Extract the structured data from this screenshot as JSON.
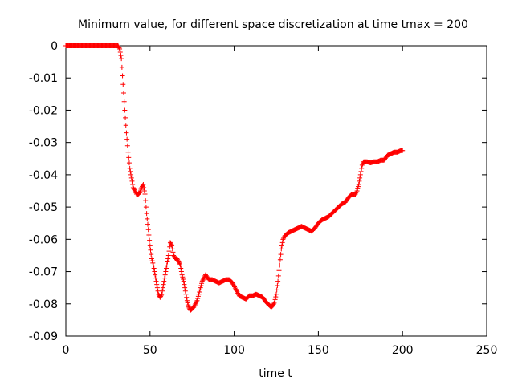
{
  "chart_data": {
    "type": "scatter",
    "title": "Minimum value, for different space discretization at time tmax = 200",
    "xlabel": "time t",
    "ylabel": "",
    "xlim": [
      0,
      250
    ],
    "ylim": [
      -0.09,
      0
    ],
    "xticks": [
      "0",
      "50",
      "100",
      "150",
      "200",
      "250"
    ],
    "yticks": [
      "0",
      "-0.01",
      "-0.02",
      "-0.03",
      "-0.04",
      "-0.05",
      "-0.06",
      "-0.07",
      "-0.08",
      "-0.09"
    ],
    "grid": false,
    "legend": "none",
    "marker": "plus",
    "series": [
      {
        "color": "#ff0000",
        "points": [
          [
            0,
            0
          ],
          [
            31,
            0
          ],
          [
            32,
            -0.001
          ],
          [
            33,
            -0.004
          ],
          [
            34,
            -0.012
          ],
          [
            35,
            -0.02
          ],
          [
            36,
            -0.027
          ],
          [
            37,
            -0.033
          ],
          [
            38,
            -0.038
          ],
          [
            39,
            -0.041
          ],
          [
            40,
            -0.044
          ],
          [
            41,
            -0.045
          ],
          [
            42,
            -0.046
          ],
          [
            43,
            -0.046
          ],
          [
            44,
            -0.0455
          ],
          [
            45,
            -0.044
          ],
          [
            46,
            -0.043
          ],
          [
            47,
            -0.046
          ],
          [
            48,
            -0.052
          ],
          [
            49,
            -0.057
          ],
          [
            50,
            -0.062
          ],
          [
            51,
            -0.066
          ],
          [
            52,
            -0.068
          ],
          [
            53,
            -0.071
          ],
          [
            54,
            -0.074
          ],
          [
            55,
            -0.077
          ],
          [
            56,
            -0.078
          ],
          [
            57,
            -0.077
          ],
          [
            58,
            -0.074
          ],
          [
            59,
            -0.071
          ],
          [
            60,
            -0.068
          ],
          [
            61,
            -0.065
          ],
          [
            62,
            -0.061
          ],
          [
            63,
            -0.062
          ],
          [
            64,
            -0.065
          ],
          [
            65,
            -0.066
          ],
          [
            66,
            -0.066
          ],
          [
            67,
            -0.067
          ],
          [
            68,
            -0.068
          ],
          [
            69,
            -0.071
          ],
          [
            70,
            -0.073
          ],
          [
            71,
            -0.076
          ],
          [
            72,
            -0.079
          ],
          [
            73,
            -0.081
          ],
          [
            74,
            -0.082
          ],
          [
            75,
            -0.0815
          ],
          [
            76,
            -0.081
          ],
          [
            77,
            -0.08
          ],
          [
            78,
            -0.079
          ],
          [
            79,
            -0.077
          ],
          [
            80,
            -0.075
          ],
          [
            81,
            -0.073
          ],
          [
            82,
            -0.072
          ],
          [
            83,
            -0.071
          ],
          [
            85,
            -0.0725
          ],
          [
            87,
            -0.0725
          ],
          [
            89,
            -0.073
          ],
          [
            91,
            -0.0735
          ],
          [
            93,
            -0.073
          ],
          [
            95,
            -0.0725
          ],
          [
            97,
            -0.0725
          ],
          [
            99,
            -0.0735
          ],
          [
            101,
            -0.0755
          ],
          [
            103,
            -0.0775
          ],
          [
            105,
            -0.078
          ],
          [
            107,
            -0.0785
          ],
          [
            109,
            -0.0775
          ],
          [
            111,
            -0.0775
          ],
          [
            113,
            -0.077
          ],
          [
            115,
            -0.0775
          ],
          [
            117,
            -0.078
          ],
          [
            119,
            -0.0795
          ],
          [
            121,
            -0.0805
          ],
          [
            122,
            -0.081
          ],
          [
            123,
            -0.0805
          ],
          [
            124,
            -0.0795
          ],
          [
            125,
            -0.077
          ],
          [
            126,
            -0.073
          ],
          [
            127,
            -0.068
          ],
          [
            128,
            -0.063
          ],
          [
            129,
            -0.06
          ],
          [
            130,
            -0.059
          ],
          [
            132,
            -0.058
          ],
          [
            134,
            -0.0575
          ],
          [
            136,
            -0.057
          ],
          [
            138,
            -0.0565
          ],
          [
            140,
            -0.056
          ],
          [
            142,
            -0.0565
          ],
          [
            144,
            -0.057
          ],
          [
            146,
            -0.0575
          ],
          [
            148,
            -0.0565
          ],
          [
            150,
            -0.055
          ],
          [
            152,
            -0.054
          ],
          [
            154,
            -0.0535
          ],
          [
            156,
            -0.053
          ],
          [
            158,
            -0.052
          ],
          [
            160,
            -0.051
          ],
          [
            162,
            -0.05
          ],
          [
            164,
            -0.049
          ],
          [
            166,
            -0.0485
          ],
          [
            168,
            -0.047
          ],
          [
            170,
            -0.046
          ],
          [
            172,
            -0.046
          ],
          [
            173,
            -0.045
          ],
          [
            174,
            -0.043
          ],
          [
            175,
            -0.04
          ],
          [
            176,
            -0.037
          ],
          [
            177,
            -0.036
          ],
          [
            179,
            -0.036
          ],
          [
            181,
            -0.0363
          ],
          [
            183,
            -0.036
          ],
          [
            185,
            -0.036
          ],
          [
            187,
            -0.0355
          ],
          [
            189,
            -0.0355
          ],
          [
            191,
            -0.034
          ],
          [
            193,
            -0.0335
          ],
          [
            195,
            -0.033
          ],
          [
            197,
            -0.033
          ],
          [
            199,
            -0.0325
          ],
          [
            200,
            -0.0325
          ]
        ]
      }
    ]
  }
}
